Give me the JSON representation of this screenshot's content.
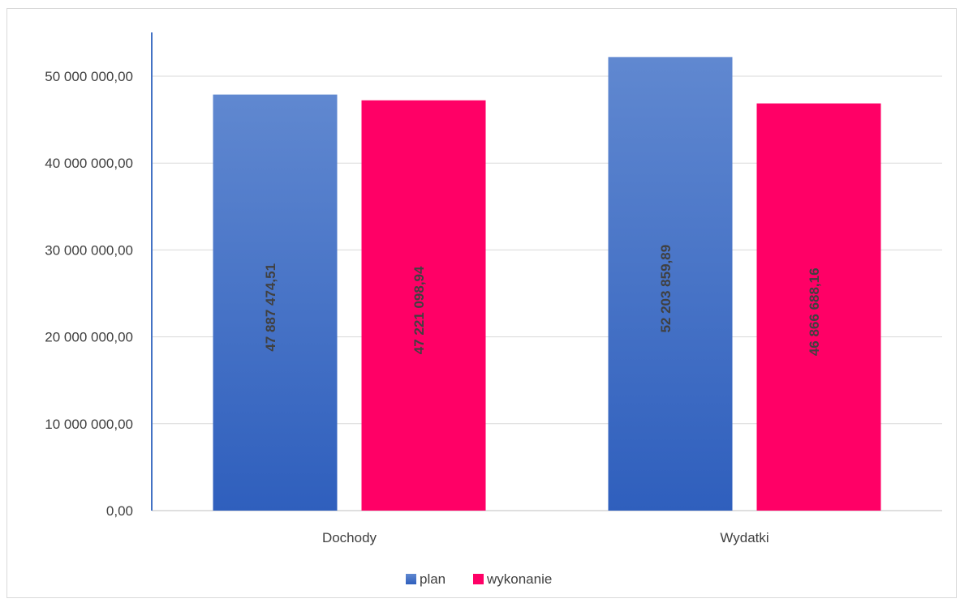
{
  "chart_data": {
    "type": "bar",
    "categories": [
      "Dochody",
      "Wydatki"
    ],
    "series": [
      {
        "name": "plan",
        "values": [
          47887474.51,
          52203859.89
        ],
        "labels": [
          "47 887 474,51",
          "52 203 859,89"
        ],
        "color": "#4472c4"
      },
      {
        "name": "wykonanie",
        "values": [
          47221098.94,
          46866688.16
        ],
        "labels": [
          "47 221 098,94",
          "46 866 688,16"
        ],
        "color": "#ff0066"
      }
    ],
    "y_ticks": [
      0,
      10000000,
      20000000,
      30000000,
      40000000,
      50000000
    ],
    "y_tick_labels": [
      "0,00",
      "10 000 000,00",
      "20 000 000,00",
      "30 000 000,00",
      "40 000 000,00",
      "50 000 000,00"
    ],
    "ylim": [
      0,
      50000000
    ],
    "title": "",
    "xlabel": "",
    "ylabel": "",
    "grid": true,
    "legend_position": "bottom"
  }
}
